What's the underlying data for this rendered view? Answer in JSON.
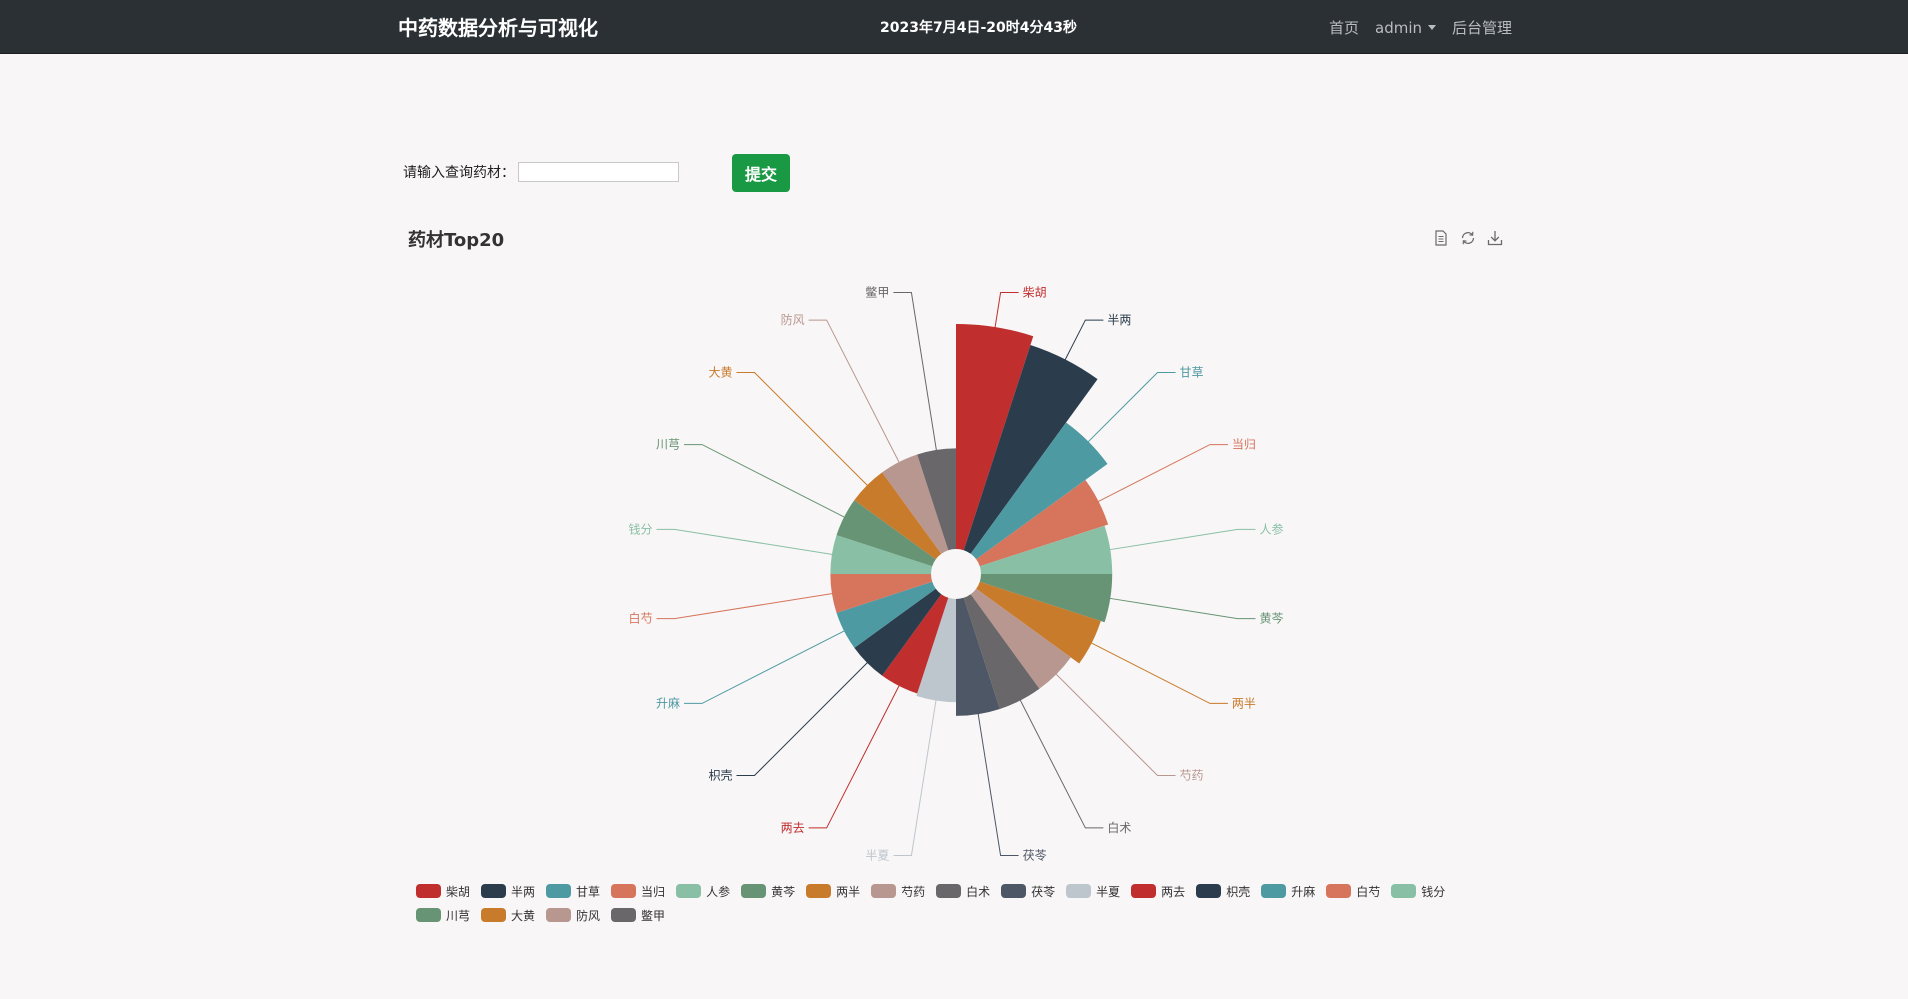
{
  "navbar": {
    "brand": "中药数据分析与可视化",
    "datetime": "2023年7月4日-20时4分43秒",
    "links": {
      "home": "首页",
      "user": "admin",
      "admin_panel": "后台管理"
    }
  },
  "search": {
    "label": "请输入查询药材：",
    "value": "",
    "submit_label": "提交"
  },
  "toolbox": {
    "data_view_icon": "file-icon",
    "restore_icon": "refresh-icon",
    "save_icon": "download-icon"
  },
  "chart_data": {
    "type": "pie",
    "variant": "nightingale-rose",
    "title": "药材Top20",
    "categories": [
      "柴胡",
      "半两",
      "甘草",
      "当归",
      "人参",
      "黄芩",
      "两半",
      "芍药",
      "白术",
      "茯苓",
      "半夏",
      "两去",
      "枳壳",
      "升麻",
      "白芍",
      "钱分",
      "川芎",
      "大黄",
      "防风",
      "鳖甲"
    ],
    "values": [
      100,
      92,
      52,
      36,
      34,
      34,
      32,
      27,
      27,
      27,
      21,
      20,
      20,
      20,
      20,
      20,
      20,
      20,
      20,
      20
    ],
    "colors": [
      "#c12e2e",
      "#2b3d4c",
      "#4e9aa3",
      "#d6745c",
      "#89c0a5",
      "#679474",
      "#c87b2b",
      "#b89791",
      "#696769",
      "#4e5765",
      "#bdc6cd",
      "#c12e2e",
      "#2b3d4c",
      "#4e9aa3",
      "#d6745c",
      "#89c0a5",
      "#679474",
      "#c87b2b",
      "#b89791",
      "#696769"
    ],
    "legend_position": "bottom"
  }
}
